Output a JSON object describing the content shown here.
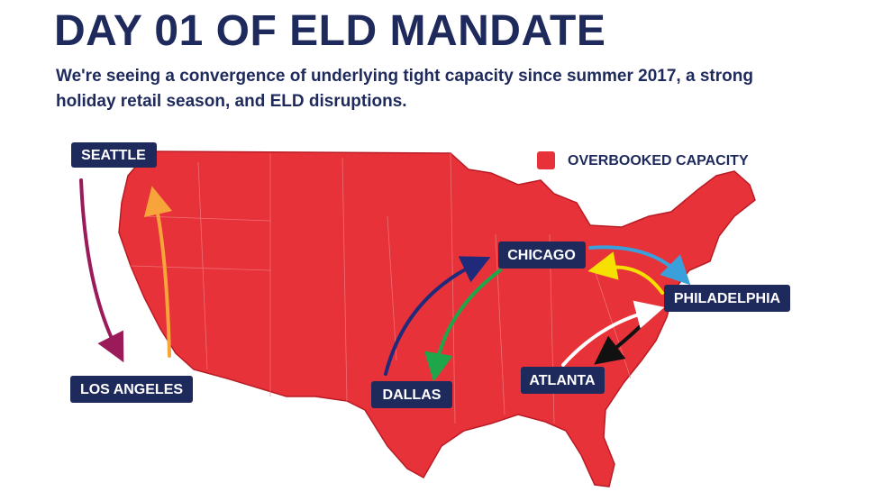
{
  "header": {
    "title": "DAY 01 OF ELD MANDATE",
    "subtitle_lines": [
      "We're seeing a convergence of underlying tight capacity since summer 2017, a strong",
      "holiday retail season, and ELD disruptions."
    ]
  },
  "legend": {
    "label": "OVERBOOKED CAPACITY",
    "color": "#e8323a"
  },
  "cities": [
    "SEATTLE",
    "LOS ANGELES",
    "CHICAGO",
    "PHILADELPHIA",
    "DALLAS",
    "ATLANTA"
  ]
}
